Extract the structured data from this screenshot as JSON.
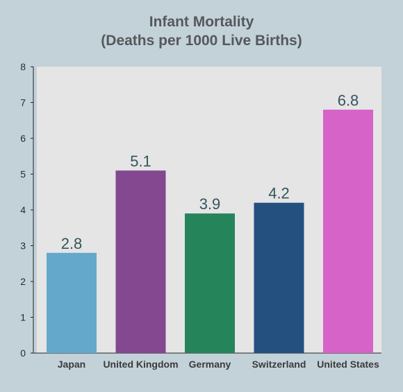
{
  "chart_data": {
    "type": "bar",
    "title_lines": [
      "Infant Mortality",
      "(Deaths per 1000 Live Births)"
    ],
    "categories": [
      "Japan",
      "United Kingdom",
      "Germany",
      "Switzerland",
      "United States"
    ],
    "values": [
      2.8,
      5.1,
      3.9,
      4.2,
      6.8
    ],
    "data_labels": [
      "2.8",
      "5.1",
      "3.9",
      "4.2",
      "6.8"
    ],
    "colors": [
      "#64a8cc",
      "#83488f",
      "#26845a",
      "#24507f",
      "#d563c8"
    ],
    "ylim": [
      0,
      8
    ],
    "yticks": [
      0,
      1,
      2,
      3,
      4,
      5,
      6,
      7,
      8
    ],
    "xlabel": "",
    "ylabel": "",
    "grid": false,
    "plot_background": "#e5e5e5",
    "page_background": "#c3d2d9"
  }
}
